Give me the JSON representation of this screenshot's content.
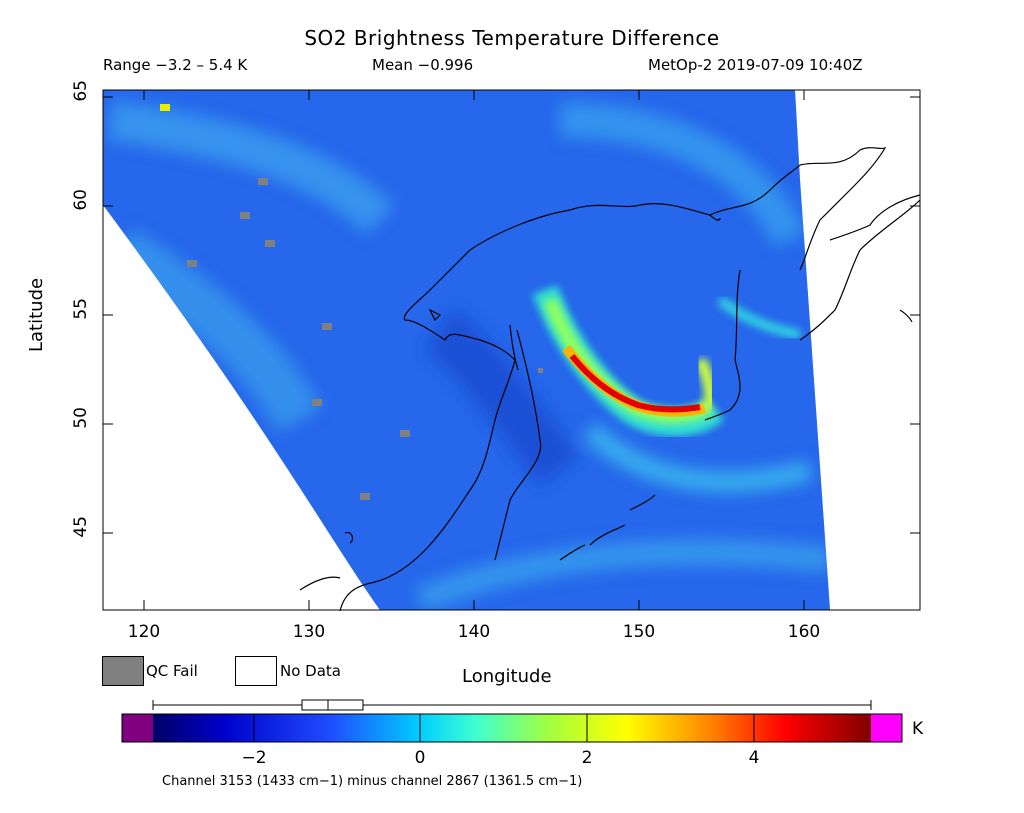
{
  "title": "SO2 Brightness Temperature Difference",
  "subtitle": {
    "range": "Range −3.2 – 5.4 K",
    "mean": "Mean −0.996",
    "satellite_time": "MetOp-2 2019-07-09 10:40Z"
  },
  "axes": {
    "x_label": "Longitude",
    "y_label": "Latitude",
    "x_ticks": [
      "120",
      "130",
      "140",
      "150",
      "160"
    ],
    "y_ticks": [
      "65",
      "60",
      "55",
      "50",
      "45"
    ],
    "x_range": [
      117.5,
      167.0
    ],
    "y_range": [
      41.5,
      65.2
    ]
  },
  "legend": {
    "qc_fail": "QC Fail",
    "no_data": "No Data",
    "qc_color": "#808080"
  },
  "colorbar": {
    "unit": "K",
    "tick_labels": [
      "−2",
      "0",
      "2",
      "4"
    ],
    "tick_values": [
      -2,
      0,
      2,
      4
    ],
    "range": [
      -3.2,
      5.4
    ],
    "underflow_color": "#800080",
    "overflow_color": "#ff00ff",
    "boxplot": {
      "min": -3.2,
      "q1": -1.4,
      "median": -1.1,
      "q3": -0.7,
      "max": 5.4
    }
  },
  "footnote": "Channel 3153 (1433 cm−1) minus channel 2867 (1361.5 cm−1)",
  "plume": {
    "description_values": "peak BTD approx 5 K along arc",
    "peak_K": 5.0
  }
}
